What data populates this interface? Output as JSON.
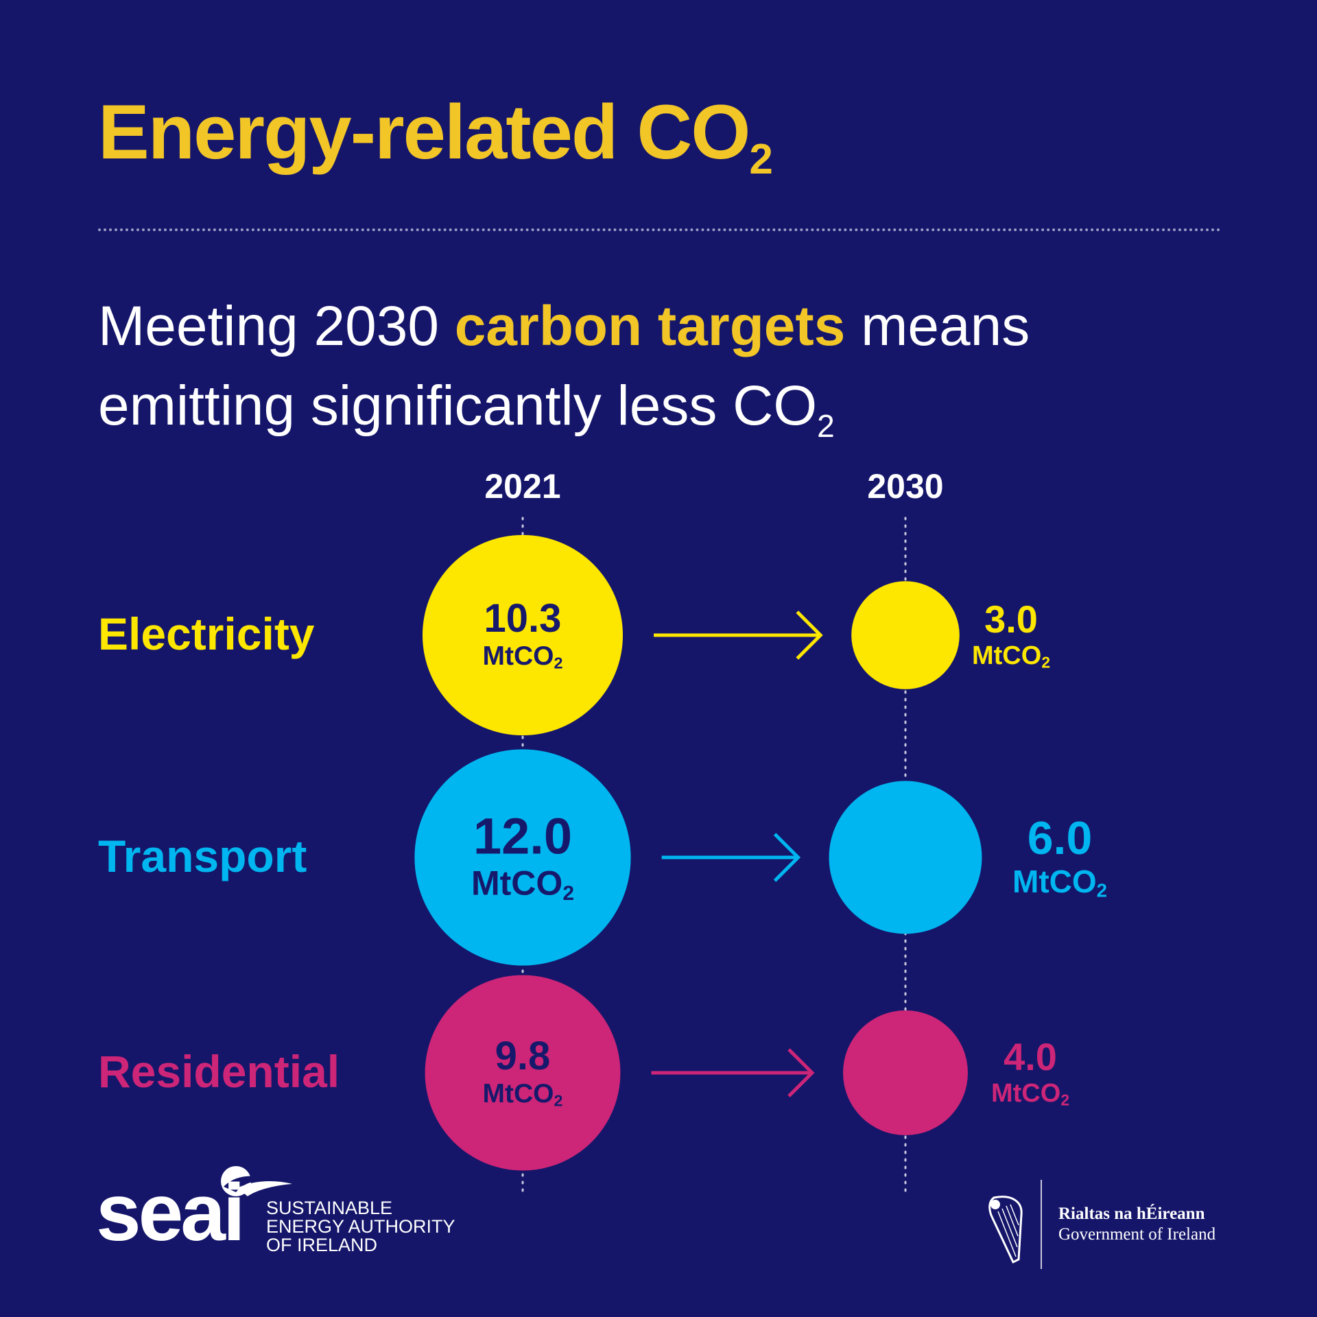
{
  "header": {
    "title": "Energy-related CO",
    "title_subscript": "2"
  },
  "subtitle": {
    "line1_before": "Meeting 2030 ",
    "line1_highlight": "carbon targets",
    "line1_after": " means",
    "line2": "emitting significantly less CO",
    "line2_subscript": "2"
  },
  "chart_data": {
    "type": "bubble-comparison",
    "x": [
      "2021",
      "2030"
    ],
    "unit": "MtCO",
    "unit_subscript": "2",
    "series": [
      {
        "name": "Electricity",
        "color": "#fde600",
        "text_color": "#16196b",
        "values": [
          10.3,
          3.0
        ]
      },
      {
        "name": "Transport",
        "color": "#00b6f0",
        "text_color": "#16196b",
        "values": [
          12.0,
          6.0
        ]
      },
      {
        "name": "Residential",
        "color": "#cd2577",
        "text_color": "#16196b",
        "values": [
          9.8,
          4.0
        ]
      }
    ],
    "value_labels": {
      "Electricity": [
        "10.3",
        "3.0"
      ],
      "Transport": [
        "12.0",
        "6.0"
      ],
      "Residential": [
        "9.8",
        "4.0"
      ]
    }
  },
  "footer": {
    "seai_wordmark": "seai",
    "seai_line1": "SUSTAINABLE",
    "seai_line2": "ENERGY AUTHORITY",
    "seai_line3": "OF IRELAND",
    "gov_line1": "Rialtas na hÉireann",
    "gov_line2": "Government of Ireland"
  },
  "colors": {
    "background": "#15166a",
    "accent_yellow": "#f3c627"
  }
}
